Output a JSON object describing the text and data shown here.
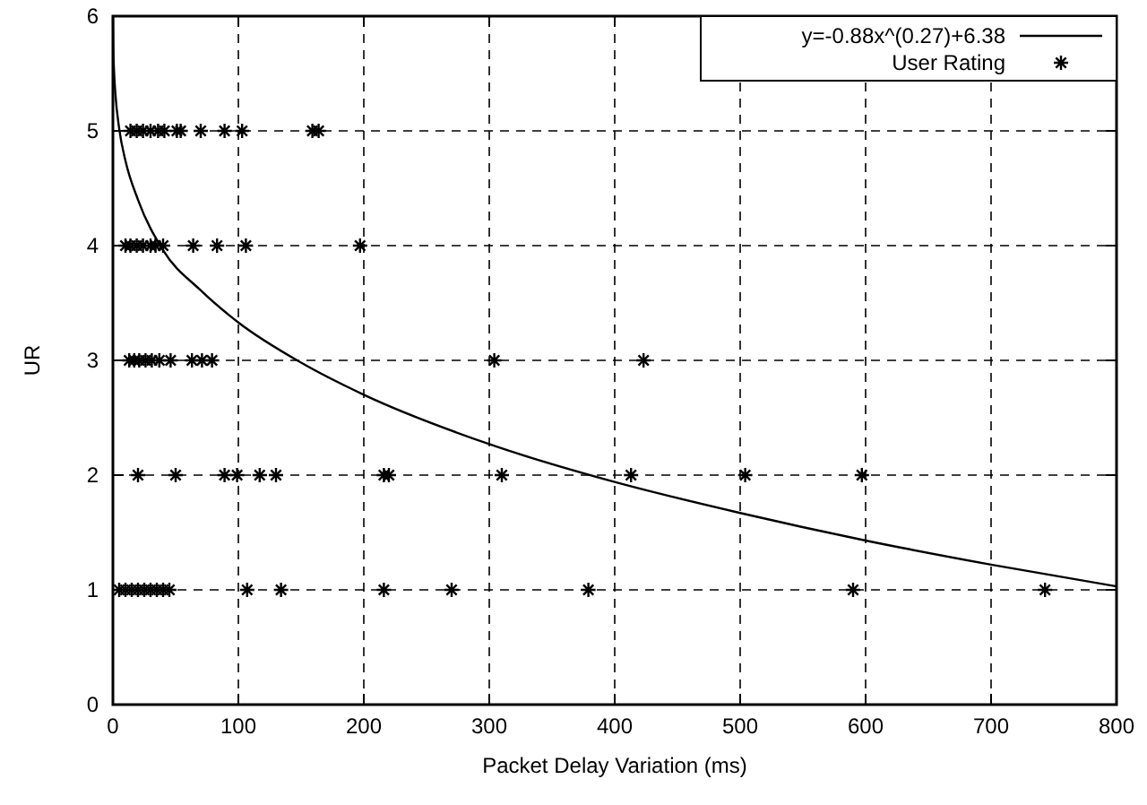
{
  "chart_data": {
    "type": "scatter",
    "xlabel": "Packet Delay Variation (ms)",
    "ylabel": "UR",
    "xlim": [
      0,
      800
    ],
    "ylim": [
      0,
      6
    ],
    "xticks": [
      0,
      100,
      200,
      300,
      400,
      500,
      600,
      700,
      800
    ],
    "yticks": [
      0,
      1,
      2,
      3,
      4,
      5,
      6
    ],
    "grid": true,
    "legend": "top right",
    "series": [
      {
        "name": "y=-0.88x^(0.27)+6.38",
        "type": "line",
        "color": "#000000",
        "line_style": "solid",
        "x": [
          0.05,
          0.3,
          1,
          2,
          5,
          10,
          20,
          40,
          70,
          100,
          150,
          200,
          300,
          400,
          500,
          600,
          700,
          800
        ],
        "values": [
          5.99,
          5.74,
          5.5,
          5.32,
          5.02,
          4.74,
          4.4,
          3.96,
          3.61,
          3.33,
          2.98,
          2.7,
          2.27,
          1.94,
          1.67,
          1.43,
          1.22,
          1.03
        ]
      },
      {
        "name": "User Rating",
        "color": "#000000",
        "marker": "cross",
        "x": [
          14,
          19,
          24,
          30,
          36,
          41,
          51,
          54,
          70,
          89,
          103,
          159,
          164,
          10,
          14,
          19,
          24,
          30,
          34,
          40,
          64,
          83,
          106,
          197,
          13,
          17,
          21,
          26,
          31,
          37,
          46,
          63,
          71,
          79,
          304,
          423,
          20,
          50,
          89,
          99,
          117,
          130,
          216,
          220,
          310,
          413,
          504,
          597,
          5,
          10,
          15,
          20,
          25,
          30,
          35,
          40,
          45,
          107,
          134,
          216,
          270,
          379,
          590,
          743
        ],
        "values": [
          5,
          5,
          5,
          5,
          5,
          5,
          5,
          5,
          5,
          5,
          5,
          5,
          5,
          4,
          4,
          4,
          4,
          4,
          4,
          4,
          4,
          4,
          4,
          4,
          3,
          3,
          3,
          3,
          3,
          3,
          3,
          3,
          3,
          3,
          3,
          3,
          2,
          2,
          2,
          2,
          2,
          2,
          2,
          2,
          2,
          2,
          2,
          2,
          1,
          1,
          1,
          1,
          1,
          1,
          1,
          1,
          1,
          1,
          1,
          1,
          1,
          1,
          1,
          1
        ]
      }
    ]
  }
}
